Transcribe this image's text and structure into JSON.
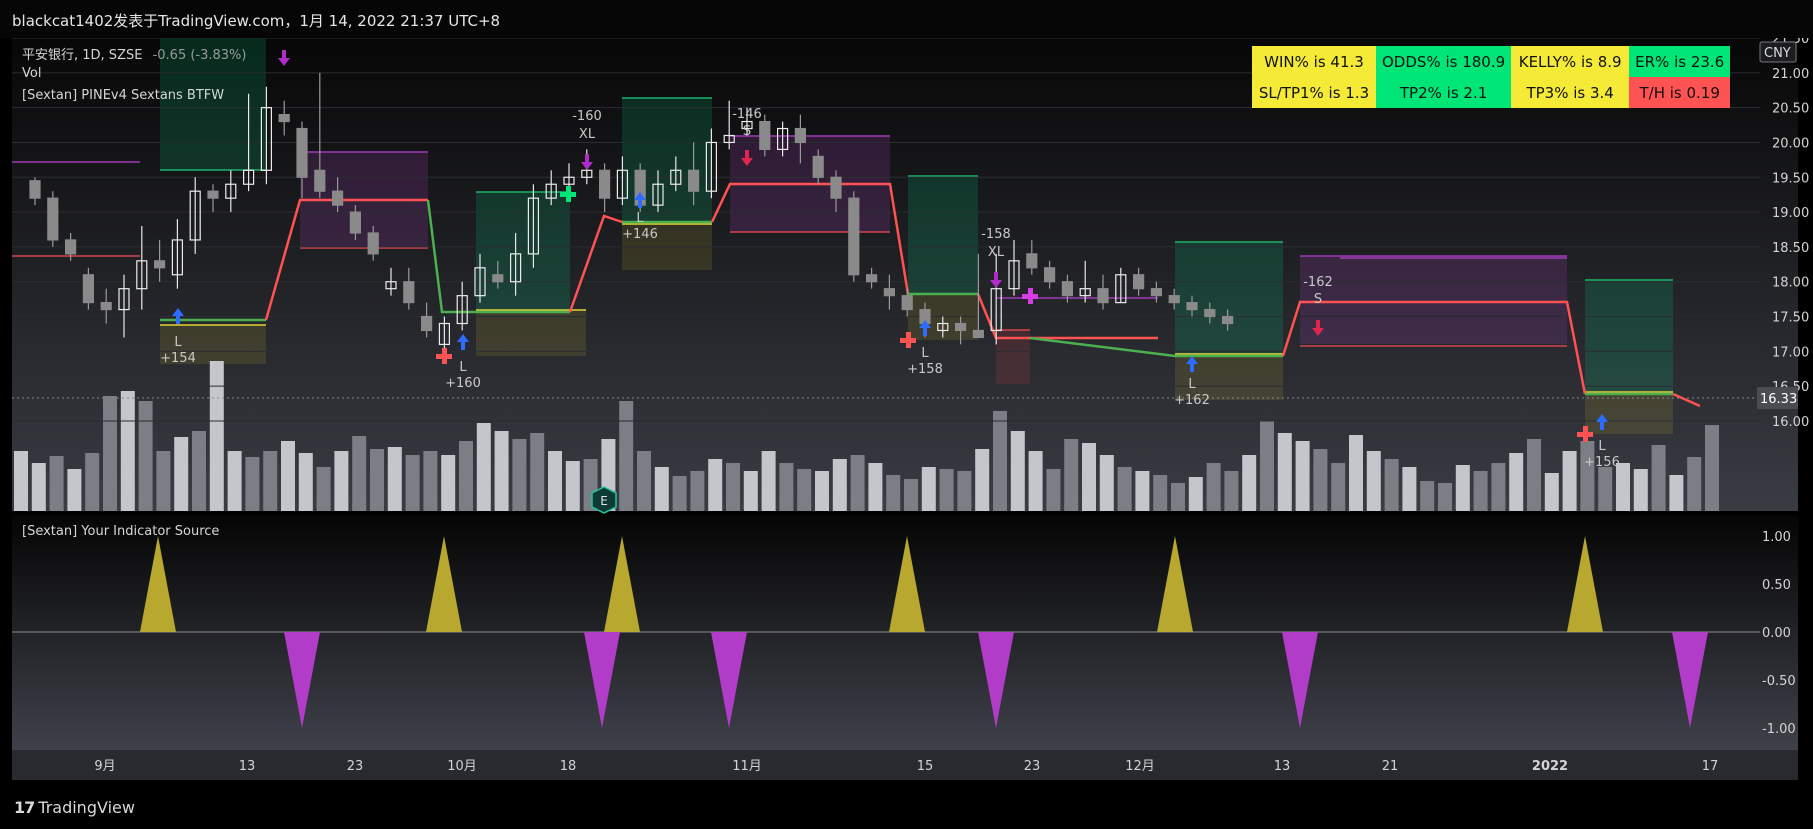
{
  "header": {
    "title": "blackcat1402发表于TradingView.com，1月 14, 2022 21:37 UTC+8"
  },
  "legend": {
    "symbol": "平安银行, 1D, SZSE",
    "change": "-0.65 (-3.83%)",
    "vol": "Vol",
    "strategy": "[Sextan] PINEv4 Sextans BTFW",
    "indicator": "[Sextan] Your Indicator Source"
  },
  "stats": {
    "row1": [
      "WIN% is 41.3",
      "ODDS% is 180.9",
      "KELLY% is 8.9",
      "ER% is 23.6"
    ],
    "row2": [
      "SL/TP1% is 1.3",
      "TP2% is 2.1",
      "TP3% is 3.4",
      "T/H is 0.19"
    ],
    "colors_row1": [
      "#f5eb36",
      "#00e676",
      "#f5eb36",
      "#00e676"
    ],
    "colors_row2": [
      "#f5eb36",
      "#00e676",
      "#f5eb36",
      "#ff5252"
    ]
  },
  "footer": {
    "brand_mark": "17",
    "brand": "TradingView"
  },
  "chart_data": {
    "type": "candlestick",
    "currency": "CNY",
    "last_price": "16.33",
    "price_ticks": [
      "21.50",
      "21.00",
      "20.50",
      "20.00",
      "19.50",
      "19.00",
      "18.50",
      "18.00",
      "17.50",
      "17.00",
      "16.50",
      "16.00"
    ],
    "price_range": [
      15.82,
      21.5
    ],
    "x_ticks": [
      {
        "label": "9月",
        "i": 5
      },
      {
        "label": "13",
        "i": 13
      },
      {
        "label": "23",
        "i": 19
      },
      {
        "label": "10月",
        "i": 25
      },
      {
        "label": "18",
        "i": 31
      },
      {
        "label": "11月",
        "i": 41
      },
      {
        "label": "15",
        "i": 51
      },
      {
        "label": "23",
        "i": 57
      },
      {
        "label": "12月",
        "i": 63
      },
      {
        "label": "13",
        "i": 71
      },
      {
        "label": "21",
        "i": 77
      },
      {
        "label": "2022",
        "i": 86
      },
      {
        "label": "17",
        "i": 94
      }
    ],
    "candles": [
      [
        19.45,
        19.2,
        19.5,
        19.1
      ],
      [
        19.2,
        18.6,
        19.3,
        18.5
      ],
      [
        18.6,
        18.4,
        18.7,
        18.3
      ],
      [
        18.1,
        17.7,
        18.2,
        17.6
      ],
      [
        17.7,
        17.6,
        17.9,
        17.4
      ],
      [
        17.6,
        17.9,
        18.1,
        17.2
      ],
      [
        17.9,
        18.3,
        18.8,
        17.6
      ],
      [
        18.3,
        18.2,
        18.6,
        18.0
      ],
      [
        18.1,
        18.6,
        18.9,
        17.9
      ],
      [
        18.6,
        19.3,
        19.5,
        18.4
      ],
      [
        19.3,
        19.2,
        19.4,
        19.0
      ],
      [
        19.2,
        19.4,
        19.6,
        19.0
      ],
      [
        19.4,
        19.6,
        20.7,
        19.3
      ],
      [
        19.6,
        20.5,
        20.8,
        19.4
      ],
      [
        20.4,
        20.3,
        20.6,
        20.1
      ],
      [
        20.2,
        19.5,
        20.3,
        19.2
      ],
      [
        19.6,
        19.3,
        21.0,
        19.2
      ],
      [
        19.3,
        19.1,
        19.5,
        19.0
      ],
      [
        19.0,
        18.7,
        19.1,
        18.6
      ],
      [
        18.7,
        18.4,
        18.8,
        18.3
      ],
      [
        17.9,
        18.0,
        18.2,
        17.8
      ],
      [
        18.0,
        17.7,
        18.2,
        17.6
      ],
      [
        17.5,
        17.3,
        17.7,
        17.2
      ],
      [
        17.1,
        17.4,
        17.5,
        17.0
      ],
      [
        17.4,
        17.8,
        18.0,
        17.3
      ],
      [
        17.8,
        18.2,
        18.4,
        17.7
      ],
      [
        18.1,
        18.0,
        18.3,
        17.9
      ],
      [
        18.0,
        18.4,
        18.7,
        17.8
      ],
      [
        18.4,
        19.2,
        19.4,
        18.2
      ],
      [
        19.2,
        19.4,
        19.6,
        19.1
      ],
      [
        19.4,
        19.5,
        19.7,
        19.3
      ],
      [
        19.5,
        19.6,
        19.9,
        19.4
      ],
      [
        19.6,
        19.2,
        19.7,
        19.0
      ],
      [
        19.2,
        19.6,
        19.8,
        19.1
      ],
      [
        19.6,
        19.1,
        19.7,
        19.0
      ],
      [
        19.1,
        19.4,
        19.6,
        19.0
      ],
      [
        19.4,
        19.6,
        19.8,
        19.3
      ],
      [
        19.6,
        19.3,
        20.0,
        19.1
      ],
      [
        19.3,
        20.0,
        20.2,
        19.2
      ],
      [
        20.0,
        20.1,
        20.6,
        19.9
      ],
      [
        20.2,
        20.3,
        20.5,
        20.1
      ],
      [
        20.3,
        19.9,
        20.4,
        19.8
      ],
      [
        19.9,
        20.2,
        20.3,
        19.8
      ],
      [
        20.2,
        20.0,
        20.4,
        19.7
      ],
      [
        19.8,
        19.5,
        19.9,
        19.4
      ],
      [
        19.5,
        19.2,
        19.6,
        19.0
      ],
      [
        19.2,
        18.1,
        19.3,
        18.0
      ],
      [
        18.1,
        18.0,
        18.2,
        17.9
      ],
      [
        17.9,
        17.8,
        18.1,
        17.6
      ],
      [
        17.8,
        17.6,
        17.9,
        17.5
      ],
      [
        17.6,
        17.4,
        17.7,
        17.2
      ],
      [
        17.3,
        17.4,
        17.5,
        17.2
      ],
      [
        17.4,
        17.3,
        17.5,
        17.1
      ],
      [
        17.3,
        17.2,
        18.4,
        17.2
      ],
      [
        17.3,
        17.9,
        18.4,
        17.1
      ],
      [
        17.9,
        18.3,
        18.6,
        17.8
      ],
      [
        18.4,
        18.2,
        18.6,
        18.1
      ],
      [
        18.2,
        18.0,
        18.3,
        17.9
      ],
      [
        18.0,
        17.8,
        18.1,
        17.7
      ],
      [
        17.8,
        17.9,
        18.3,
        17.7
      ],
      [
        17.9,
        17.7,
        18.1,
        17.6
      ],
      [
        17.7,
        18.1,
        18.2,
        17.7
      ],
      [
        18.1,
        17.9,
        18.2,
        17.8
      ],
      [
        17.9,
        17.8,
        18.0,
        17.7
      ],
      [
        17.8,
        17.7,
        17.9,
        17.6
      ],
      [
        17.7,
        17.6,
        17.8,
        17.5
      ],
      [
        17.6,
        17.5,
        17.7,
        17.4
      ],
      [
        17.5,
        17.4,
        17.6,
        17.3
      ]
    ],
    "volume": {
      "note": "volume bars",
      "range_max": 1.0
    }
  }
}
